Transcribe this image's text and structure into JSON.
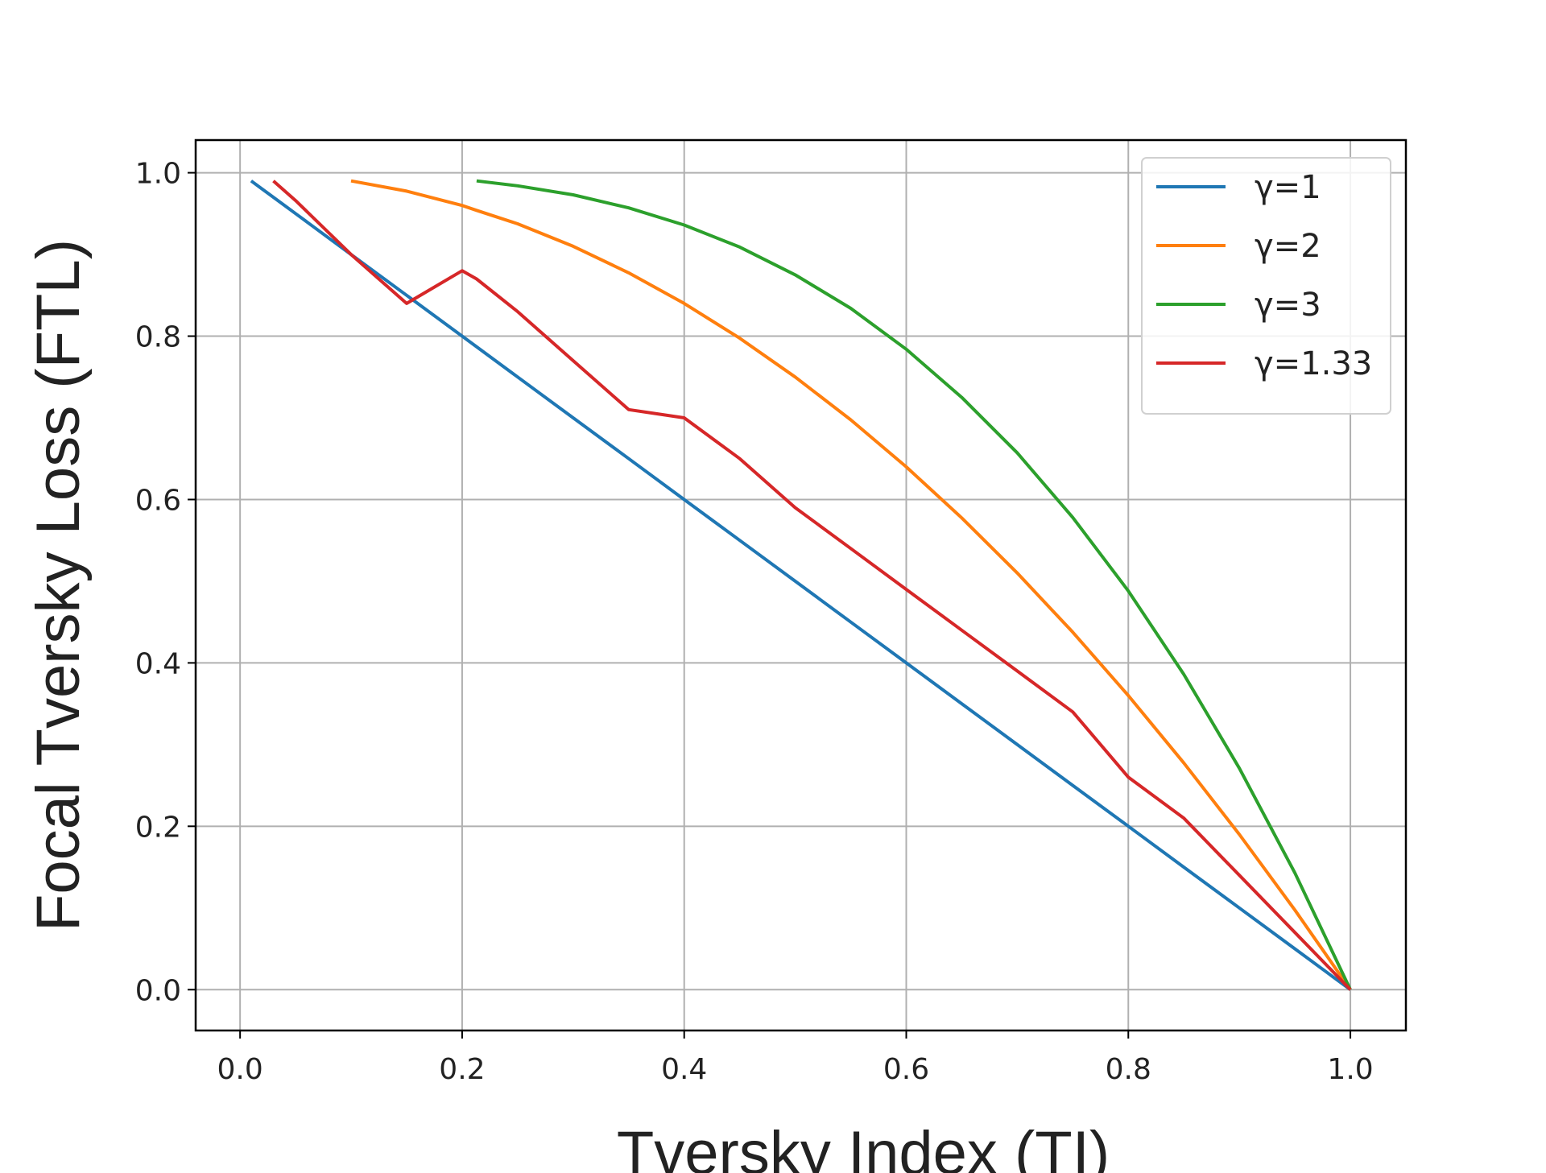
{
  "chart_data": {
    "type": "line",
    "title": "",
    "xlabel": "Tversky Index (TI)",
    "ylabel": "Focal Tversky Loss  (FTL)",
    "xlim": [
      -0.04,
      1.05
    ],
    "ylim": [
      -0.05,
      1.04
    ],
    "xticks": [
      0.0,
      0.2,
      0.4,
      0.6,
      0.8,
      1.0
    ],
    "yticks": [
      0.0,
      0.2,
      0.4,
      0.6,
      0.8,
      1.0
    ],
    "xtick_labels": [
      "0.0",
      "0.2",
      "0.4",
      "0.6",
      "0.8",
      "1.0"
    ],
    "ytick_labels": [
      "0.0",
      "0.2",
      "0.4",
      "0.6",
      "0.8",
      "1.0"
    ],
    "grid": true,
    "legend_position": "top-right",
    "x": [
      0.01,
      0.02,
      0.03,
      0.05,
      0.1,
      0.15,
      0.2,
      0.213,
      0.25,
      0.3,
      0.35,
      0.4,
      0.45,
      0.5,
      0.55,
      0.6,
      0.65,
      0.7,
      0.75,
      0.8,
      0.85,
      0.9,
      0.95,
      1.0
    ],
    "series": [
      {
        "name": "γ=1",
        "color": "#1f77b4",
        "values": [
          0.99,
          0.98,
          0.97,
          0.95,
          0.9,
          0.85,
          0.8,
          0.787,
          0.75,
          0.7,
          0.65,
          0.6,
          0.55,
          0.5,
          0.45,
          0.4,
          0.35,
          0.3,
          0.25,
          0.2,
          0.15,
          0.1,
          0.05,
          0.0
        ]
      },
      {
        "name": "γ=2",
        "color": "#ff7f0e",
        "values": [
          null,
          null,
          null,
          null,
          0.99,
          0.9775,
          0.96,
          0.954,
          0.9375,
          0.91,
          0.8775,
          0.84,
          0.7975,
          0.75,
          0.6975,
          0.64,
          0.5775,
          0.51,
          0.4375,
          0.36,
          0.2775,
          0.19,
          0.0975,
          0.0
        ]
      },
      {
        "name": "γ=3",
        "color": "#2ca02c",
        "values": [
          null,
          null,
          null,
          null,
          null,
          null,
          null,
          0.99,
          0.984,
          0.973,
          0.957,
          0.936,
          0.909,
          0.875,
          0.834,
          0.784,
          0.725,
          0.657,
          0.578,
          0.488,
          0.386,
          0.271,
          0.143,
          0.0
        ]
      },
      {
        "name": "γ=1.33",
        "color": "#d62728",
        "values": [
          null,
          null,
          0.99,
          0.966,
          0.9,
          0.84,
          0.88,
          0.87,
          0.83,
          0.77,
          0.71,
          0.7,
          0.65,
          0.59,
          0.54,
          0.49,
          0.44,
          0.39,
          0.34,
          0.26,
          0.21,
          0.14,
          0.07,
          0.0
        ]
      }
    ]
  }
}
